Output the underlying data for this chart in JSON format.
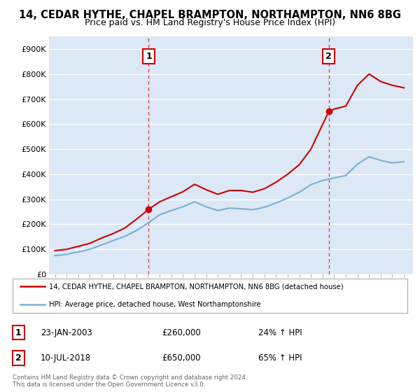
{
  "title": "14, CEDAR HYTHE, CHAPEL BRAMPTON, NORTHAMPTON, NN6 8BG",
  "subtitle": "Price paid vs. HM Land Registry's House Price Index (HPI)",
  "legend_line1": "14, CEDAR HYTHE, CHAPEL BRAMPTON, NORTHAMPTON, NN6 8BG (detached house)",
  "legend_line2": "HPI: Average price, detached house, West Northamptonshire",
  "annotation1_label": "1",
  "annotation1_date": "23-JAN-2003",
  "annotation1_price": "£260,000",
  "annotation1_hpi": "24% ↑ HPI",
  "annotation2_label": "2",
  "annotation2_date": "10-JUL-2018",
  "annotation2_price": "£650,000",
  "annotation2_hpi": "65% ↑ HPI",
  "footer1": "Contains HM Land Registry data © Crown copyright and database right 2024.",
  "footer2": "This data is licensed under the Open Government Licence v3.0.",
  "sale1_year": 2003.06,
  "sale1_price": 260000,
  "sale2_year": 2018.53,
  "sale2_price": 650000,
  "hpi_color": "#7bafd4",
  "price_color": "#cc0000",
  "ylim_max": 950000,
  "ylim_min": 0,
  "xlim_min": 1994.5,
  "xlim_max": 2025.8,
  "background_color": "#ffffff",
  "plot_bg_color": "#dce8f5",
  "grid_color": "#ffffff",
  "title_fontsize": 10.5,
  "subtitle_fontsize": 9
}
